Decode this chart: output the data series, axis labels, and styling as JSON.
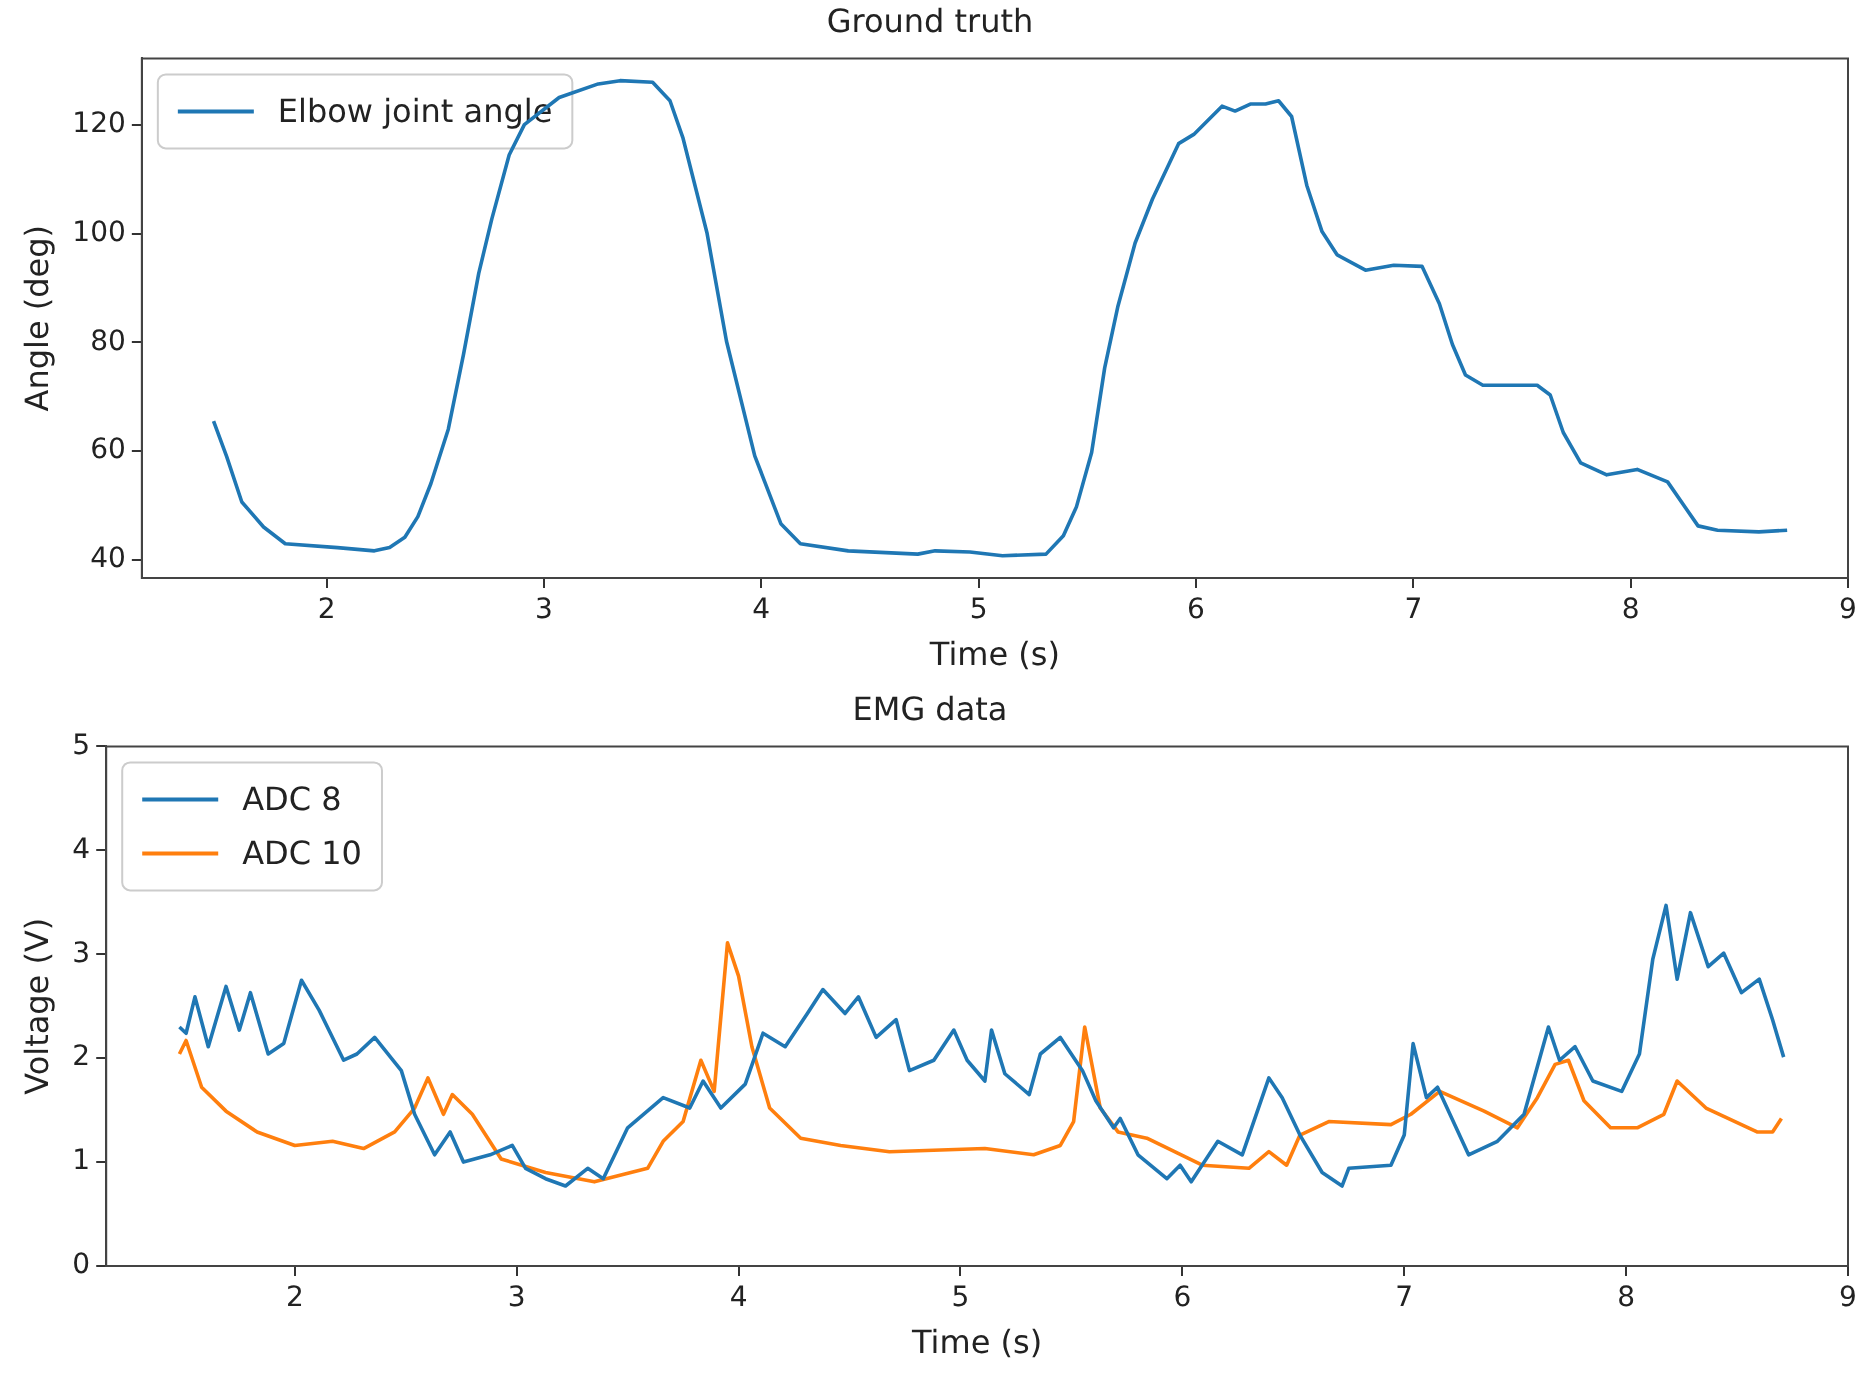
{
  "chart_data": [
    {
      "type": "line",
      "title": "Ground truth",
      "xlabel": "Time (s)",
      "ylabel": "Angle (deg)",
      "legend": "top left",
      "marker": "none",
      "line_style": "solid",
      "xlim": [
        1.15,
        9.0
      ],
      "xticks": [
        2,
        3,
        4,
        5,
        6,
        7,
        8,
        9
      ],
      "ylim": [
        36.6,
        132.3
      ],
      "yticks": [
        40,
        60,
        80,
        100,
        120
      ],
      "series": [
        {
          "name": "Elbow joint angle",
          "color": "#1f77b4",
          "x": [
            1.48,
            1.54,
            1.61,
            1.71,
            1.81,
            2.05,
            2.22,
            2.29,
            2.36,
            2.42,
            2.48,
            2.56,
            2.63,
            2.7,
            2.76,
            2.84,
            2.91,
            3.07,
            3.25,
            3.35,
            3.5,
            3.58,
            3.64,
            3.75,
            3.84,
            3.97,
            4.09,
            4.18,
            4.4,
            4.72,
            4.8,
            4.96,
            5.11,
            5.31,
            5.39,
            5.45,
            5.52,
            5.58,
            5.64,
            5.72,
            5.8,
            5.92,
            5.99,
            6.12,
            6.18,
            6.25,
            6.32,
            6.38,
            6.44,
            6.51,
            6.58,
            6.65,
            6.78,
            6.91,
            7.04,
            7.12,
            7.18,
            7.24,
            7.32,
            7.57,
            7.63,
            7.69,
            7.77,
            7.89,
            8.03,
            8.17,
            8.31,
            8.4,
            8.59,
            8.72
          ],
          "values": [
            65.5,
            59,
            50.6,
            46,
            42.9,
            42.2,
            41.6,
            42.2,
            44.1,
            47.9,
            54,
            64,
            77.8,
            92.7,
            102.7,
            114.5,
            120.1,
            125.1,
            127.6,
            128.2,
            127.9,
            124.5,
            117.6,
            100.2,
            80.2,
            59.1,
            46.6,
            42.9,
            41.6,
            41,
            41.6,
            41.4,
            40.7,
            41,
            44.4,
            49.7,
            59.7,
            75.3,
            86.5,
            98.3,
            106.4,
            116.6,
            118.3,
            123.5,
            122.6,
            123.9,
            123.9,
            124.5,
            121.6,
            108.9,
            100.4,
            96.1,
            93.3,
            94.2,
            94,
            87.1,
            79.6,
            74,
            72.1,
            72.1,
            70.3,
            63.4,
            57.8,
            55.6,
            56.6,
            54.3,
            46.2,
            45.4,
            45.1,
            45.4
          ]
        }
      ]
    },
    {
      "type": "line",
      "title": "EMG data",
      "xlabel": "Time (s)",
      "ylabel": "Voltage (V)",
      "legend": "top left",
      "marker": "none",
      "line_style": "solid",
      "xlim": [
        1.15,
        9.0
      ],
      "xticks": [
        2,
        3,
        4,
        5,
        6,
        7,
        8,
        9
      ],
      "ylim": [
        0,
        5
      ],
      "yticks": [
        0,
        1,
        2,
        3,
        4,
        5
      ],
      "series": [
        {
          "name": "ADC 8",
          "color": "#1f77b4",
          "x": [
            1.48,
            1.51,
            1.55,
            1.61,
            1.69,
            1.75,
            1.8,
            1.88,
            1.95,
            2.03,
            2.11,
            2.22,
            2.28,
            2.36,
            2.48,
            2.54,
            2.63,
            2.7,
            2.76,
            2.88,
            2.98,
            3.04,
            3.13,
            3.22,
            3.32,
            3.39,
            3.5,
            3.66,
            3.78,
            3.84,
            3.92,
            4.03,
            4.11,
            4.21,
            4.31,
            4.38,
            4.48,
            4.54,
            4.62,
            4.71,
            4.77,
            4.88,
            4.97,
            5.03,
            5.11,
            5.14,
            5.2,
            5.31,
            5.36,
            5.45,
            5.55,
            5.61,
            5.69,
            5.72,
            5.8,
            5.93,
            5.99,
            6.04,
            6.16,
            6.27,
            6.39,
            6.45,
            6.53,
            6.63,
            6.72,
            6.75,
            6.94,
            7.0,
            7.04,
            7.1,
            7.15,
            7.29,
            7.42,
            7.54,
            7.65,
            7.7,
            7.77,
            7.85,
            7.98,
            8.06,
            8.12,
            8.18,
            8.23,
            8.29,
            8.37,
            8.44,
            8.52,
            8.6,
            8.66,
            8.71
          ],
          "values": [
            2.3,
            2.24,
            2.59,
            2.11,
            2.69,
            2.27,
            2.63,
            2.04,
            2.14,
            2.75,
            2.46,
            1.98,
            2.04,
            2.2,
            1.88,
            1.46,
            1.07,
            1.29,
            1.0,
            1.07,
            1.16,
            0.94,
            0.84,
            0.77,
            0.94,
            0.84,
            1.33,
            1.62,
            1.52,
            1.78,
            1.52,
            1.75,
            2.24,
            2.11,
            2.43,
            2.66,
            2.43,
            2.59,
            2.2,
            2.37,
            1.88,
            1.98,
            2.27,
            1.98,
            1.78,
            2.27,
            1.85,
            1.65,
            2.04,
            2.2,
            1.88,
            1.59,
            1.33,
            1.42,
            1.07,
            0.84,
            0.97,
            0.81,
            1.2,
            1.07,
            1.81,
            1.62,
            1.26,
            0.9,
            0.77,
            0.94,
            0.97,
            1.26,
            2.14,
            1.62,
            1.72,
            1.07,
            1.2,
            1.46,
            2.3,
            1.98,
            2.11,
            1.78,
            1.68,
            2.04,
            2.95,
            3.47,
            2.76,
            3.4,
            2.88,
            3.01,
            2.63,
            2.76,
            2.37,
            2.01
          ]
        },
        {
          "name": "ADC 10",
          "color": "#ff7f0e",
          "x": [
            1.48,
            1.51,
            1.58,
            1.69,
            1.83,
            2.0,
            2.17,
            2.31,
            2.45,
            2.54,
            2.6,
            2.67,
            2.71,
            2.8,
            2.93,
            3.13,
            3.35,
            3.59,
            3.66,
            3.75,
            3.83,
            3.89,
            3.95,
            4.0,
            4.06,
            4.14,
            4.28,
            4.46,
            4.68,
            5.11,
            5.33,
            5.45,
            5.51,
            5.56,
            5.63,
            5.71,
            5.84,
            6.09,
            6.3,
            6.39,
            6.47,
            6.53,
            6.66,
            6.94,
            7.03,
            7.16,
            7.36,
            7.51,
            7.6,
            7.68,
            7.74,
            7.81,
            7.93,
            8.05,
            8.17,
            8.23,
            8.36,
            8.59,
            8.66,
            8.7
          ],
          "values": [
            2.04,
            2.17,
            1.72,
            1.49,
            1.29,
            1.16,
            1.2,
            1.13,
            1.29,
            1.52,
            1.81,
            1.46,
            1.65,
            1.46,
            1.03,
            0.9,
            0.81,
            0.94,
            1.2,
            1.39,
            1.98,
            1.68,
            3.11,
            2.79,
            2.11,
            1.52,
            1.23,
            1.16,
            1.1,
            1.13,
            1.07,
            1.16,
            1.39,
            2.3,
            1.52,
            1.29,
            1.23,
            0.97,
            0.94,
            1.1,
            0.97,
            1.26,
            1.39,
            1.36,
            1.46,
            1.68,
            1.49,
            1.33,
            1.62,
            1.94,
            1.98,
            1.59,
            1.33,
            1.33,
            1.46,
            1.78,
            1.52,
            1.29,
            1.29,
            1.42
          ]
        }
      ]
    }
  ]
}
